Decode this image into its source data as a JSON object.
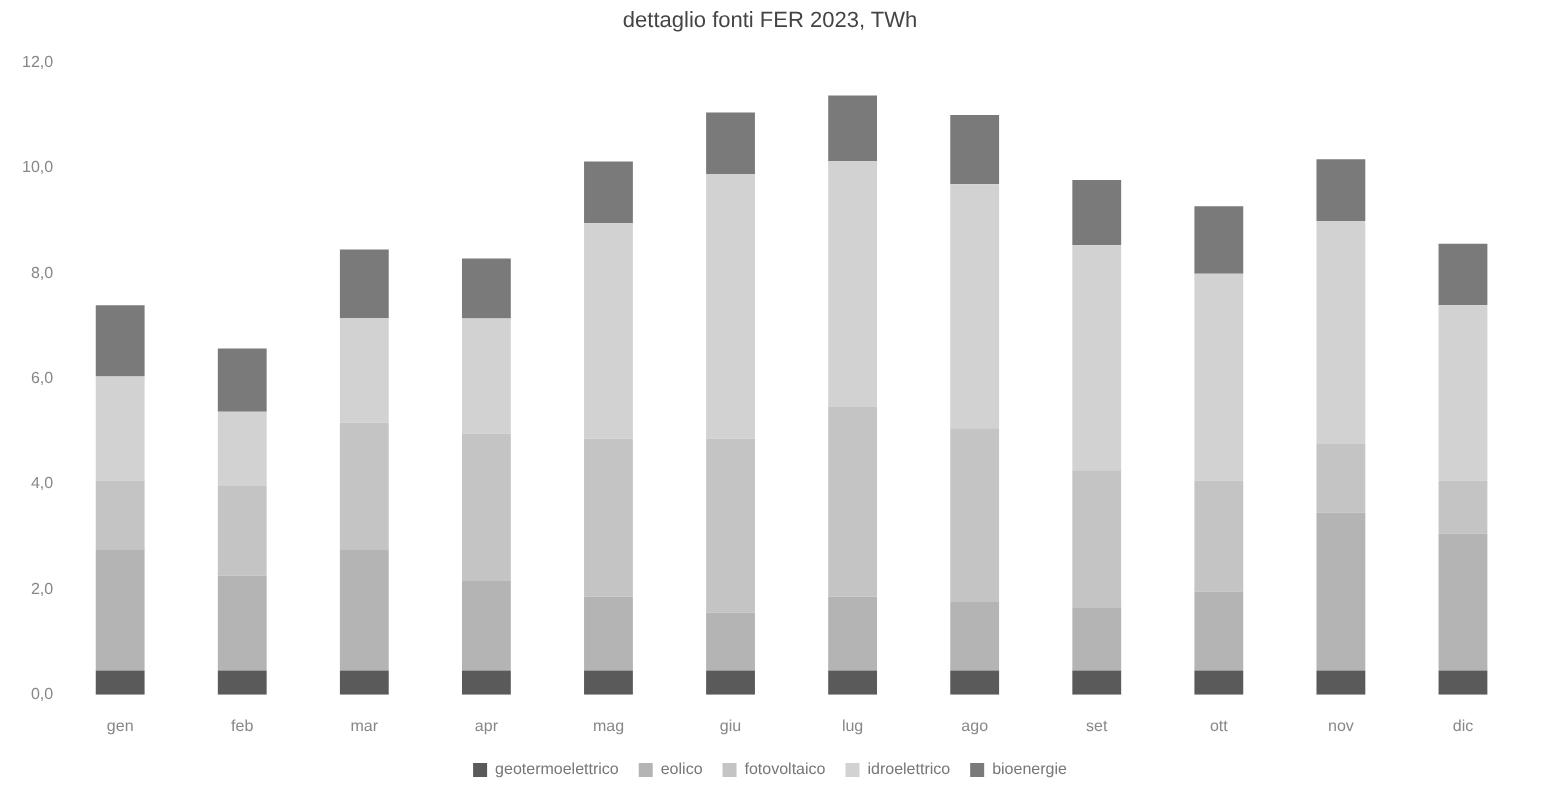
{
  "chart_data": {
    "type": "bar",
    "stacked": true,
    "title": "dettaglio fonti FER 2023, TWh",
    "categories": [
      "gen",
      "feb",
      "mar",
      "apr",
      "mag",
      "giu",
      "lug",
      "ago",
      "set",
      "ott",
      "nov",
      "dic"
    ],
    "series": [
      {
        "name": "geotermoelettrico",
        "color": "#5a5a5a",
        "values": [
          0.46,
          0.46,
          0.46,
          0.46,
          0.46,
          0.46,
          0.46,
          0.46,
          0.46,
          0.46,
          0.46,
          0.46
        ]
      },
      {
        "name": "eolico",
        "color": "#b4b4b4",
        "values": [
          2.3,
          1.8,
          2.3,
          1.7,
          1.4,
          1.1,
          1.4,
          1.3,
          1.2,
          1.5,
          3.0,
          2.6
        ]
      },
      {
        "name": "fotovoltaico",
        "color": "#c4c4c4",
        "values": [
          1.3,
          1.7,
          2.4,
          2.8,
          3.0,
          3.3,
          3.6,
          3.3,
          2.6,
          2.1,
          1.3,
          1.0
        ]
      },
      {
        "name": "idroelettrico",
        "color": "#d2d2d2",
        "values": [
          1.98,
          1.41,
          1.99,
          2.18,
          4.09,
          5.02,
          4.67,
          4.63,
          4.27,
          3.93,
          4.23,
          3.33
        ]
      },
      {
        "name": "bioenergie",
        "color": "#7a7a7a",
        "values": [
          1.35,
          1.2,
          1.3,
          1.14,
          1.17,
          1.17,
          1.24,
          1.31,
          1.24,
          1.28,
          1.17,
          1.17
        ]
      }
    ],
    "ylim": [
      0,
      12
    ],
    "yticks": [
      {
        "value": 0,
        "label": "0,0"
      },
      {
        "value": 2,
        "label": "2,0"
      },
      {
        "value": 4,
        "label": "4,0"
      },
      {
        "value": 6,
        "label": "6,0"
      },
      {
        "value": 8,
        "label": "8,0"
      },
      {
        "value": 10,
        "label": "10,0"
      },
      {
        "value": 12,
        "label": "12,0"
      }
    ],
    "grid": false,
    "legend": "bottom"
  }
}
